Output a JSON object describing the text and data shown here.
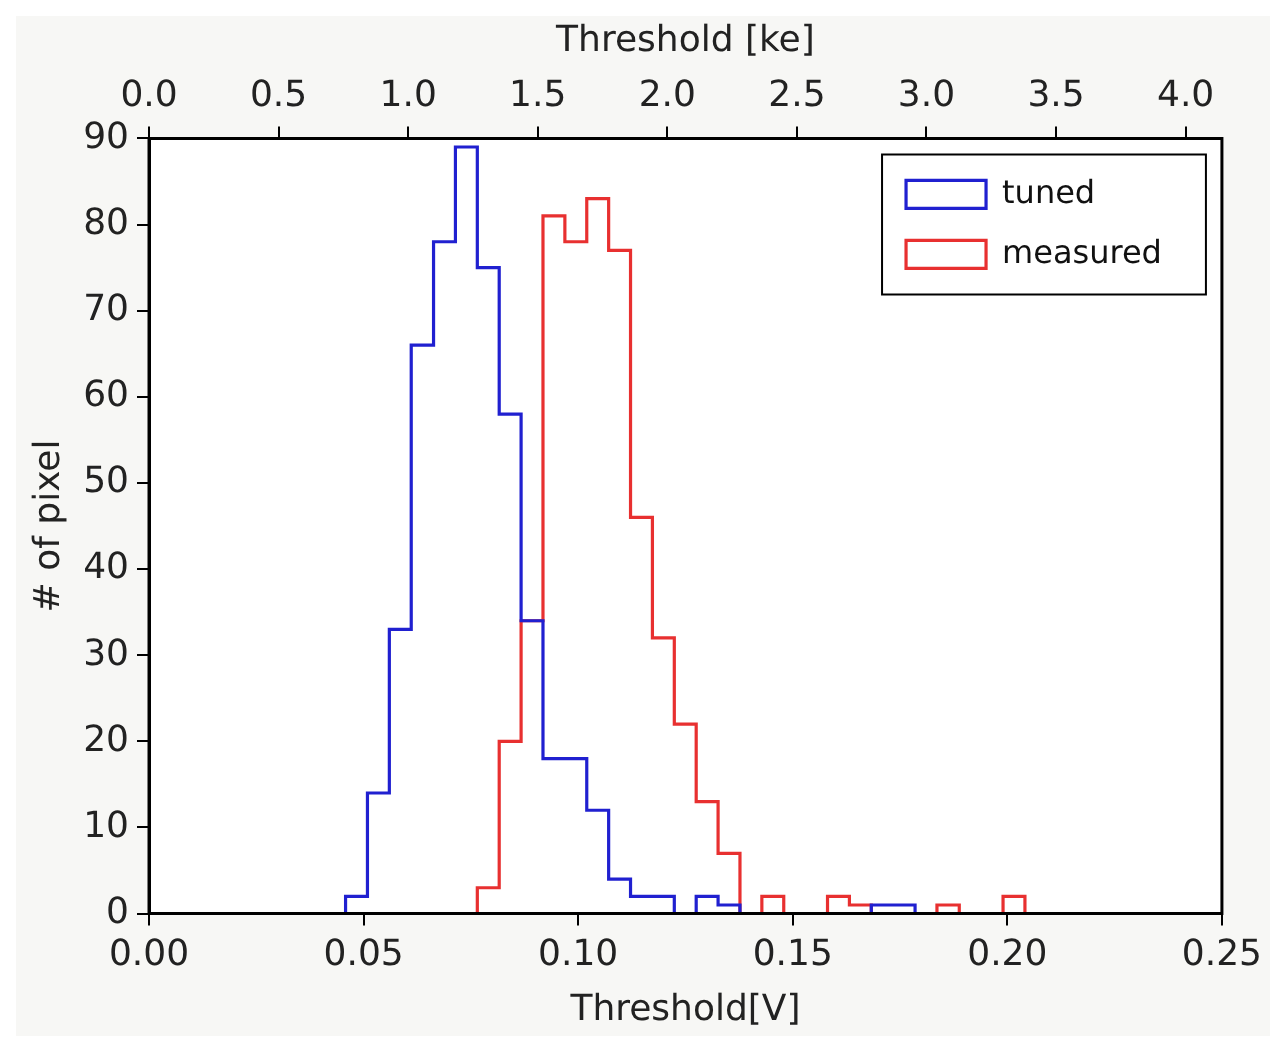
{
  "chart_data": {
    "type": "histogram",
    "xlabel": "Threshold[V]",
    "ylabel": "# of pixel",
    "x2label": "Threshold [ke]",
    "bins": [
      0.005,
      0.0101,
      0.0152,
      0.0203,
      0.0254,
      0.0305,
      0.0356,
      0.0407,
      0.0458,
      0.0509,
      0.056,
      0.0611,
      0.0663,
      0.0714,
      0.0765,
      0.0816,
      0.0867,
      0.0918,
      0.0969,
      0.102,
      0.1071,
      0.1122,
      0.1173,
      0.1224,
      0.1275,
      0.1326,
      0.1377,
      0.1428,
      0.1479,
      0.153,
      0.1581,
      0.1632,
      0.1683,
      0.1734,
      0.1785,
      0.1836,
      0.1888,
      0.1939,
      0.199,
      0.2041,
      0.2092,
      0.2143,
      0.2194,
      0.2245,
      0.2296,
      0.2347,
      0.2398,
      0.2449,
      0.25
    ],
    "series": [
      {
        "name": "tuned",
        "color": "#2020d0",
        "values": [
          0,
          0,
          0,
          0,
          0,
          0,
          0,
          0,
          2,
          14,
          33,
          66,
          78,
          89,
          75,
          58,
          34,
          18,
          18,
          12,
          4,
          2,
          2,
          0,
          2,
          1,
          0,
          0,
          0,
          0,
          0,
          0,
          1,
          1,
          0,
          0,
          0,
          0,
          0,
          0,
          0,
          0,
          0,
          0,
          0,
          0,
          0,
          0
        ]
      },
      {
        "name": "measured",
        "color": "#e83030",
        "values": [
          0,
          0,
          0,
          0,
          0,
          0,
          0,
          0,
          0,
          0,
          0,
          0,
          0,
          0,
          3,
          20,
          34,
          81,
          78,
          83,
          77,
          46,
          32,
          22,
          13,
          7,
          0,
          2,
          0,
          0,
          2,
          1,
          0,
          0,
          0,
          1,
          0,
          0,
          2,
          0,
          0,
          0,
          0,
          0,
          0,
          0,
          0,
          0
        ]
      }
    ],
    "xlim": [
      0,
      0.25
    ],
    "xticks": [
      {
        "value": 0,
        "label": "0.00"
      },
      {
        "value": 0.05,
        "label": "0.05"
      },
      {
        "value": 0.1,
        "label": "0.10"
      },
      {
        "value": 0.15,
        "label": "0.15"
      },
      {
        "value": 0.2,
        "label": "0.20"
      },
      {
        "value": 0.25,
        "label": "0.25"
      }
    ],
    "ylim": [
      0,
      90
    ],
    "yticks": [
      0,
      10,
      20,
      30,
      40,
      50,
      60,
      70,
      80,
      90
    ],
    "x2lim": [
      0,
      4.14
    ],
    "x2ticks": [
      {
        "value": 0,
        "label": "0.0"
      },
      {
        "value": 0.5,
        "label": "0.5"
      },
      {
        "value": 1,
        "label": "1.0"
      },
      {
        "value": 1.5,
        "label": "1.5"
      },
      {
        "value": 2,
        "label": "2.0"
      },
      {
        "value": 2.5,
        "label": "2.5"
      },
      {
        "value": 3,
        "label": "3.0"
      },
      {
        "value": 3.5,
        "label": "3.5"
      },
      {
        "value": 4,
        "label": "4.0"
      }
    ],
    "legend": "top right"
  }
}
